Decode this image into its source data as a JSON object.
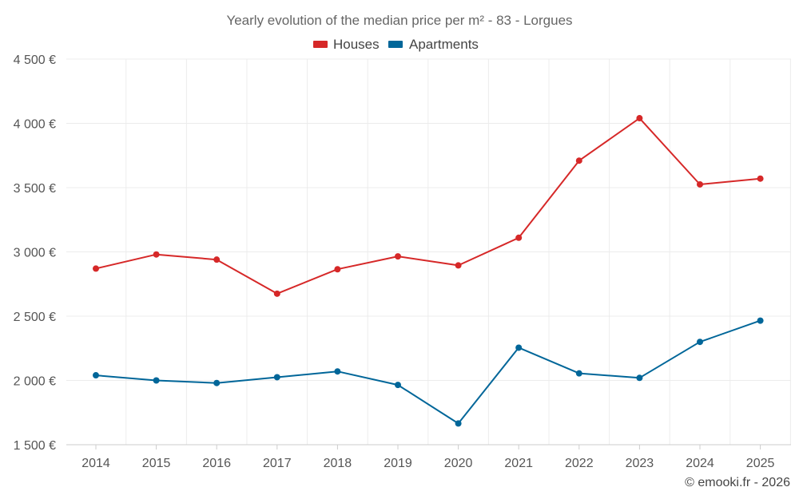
{
  "chart_data": {
    "type": "line",
    "title": "Yearly evolution of the median price per m² - 83 - Lorgues",
    "categories": [
      "2014",
      "2015",
      "2016",
      "2017",
      "2018",
      "2019",
      "2020",
      "2021",
      "2022",
      "2023",
      "2024",
      "2025"
    ],
    "ylim": [
      1500,
      4500
    ],
    "yticks": [
      1500,
      2000,
      2500,
      3000,
      3500,
      4000,
      4500
    ],
    "ytick_labels": [
      "1 500 €",
      "2 000 €",
      "2 500 €",
      "3 000 €",
      "3 500 €",
      "4 000 €",
      "4 500 €"
    ],
    "grid": true,
    "legend_position": "top-center",
    "series": [
      {
        "name": "Houses",
        "color": "#d62828",
        "values": [
          2870,
          2980,
          2940,
          2675,
          2865,
          2965,
          2895,
          3110,
          3710,
          4040,
          3525,
          3570
        ]
      },
      {
        "name": "Apartments",
        "color": "#006699",
        "values": [
          2040,
          2000,
          1980,
          2025,
          2070,
          1965,
          1665,
          2255,
          2055,
          2020,
          2300,
          2465
        ]
      }
    ],
    "credit": "© emooki.fr - 2026"
  }
}
